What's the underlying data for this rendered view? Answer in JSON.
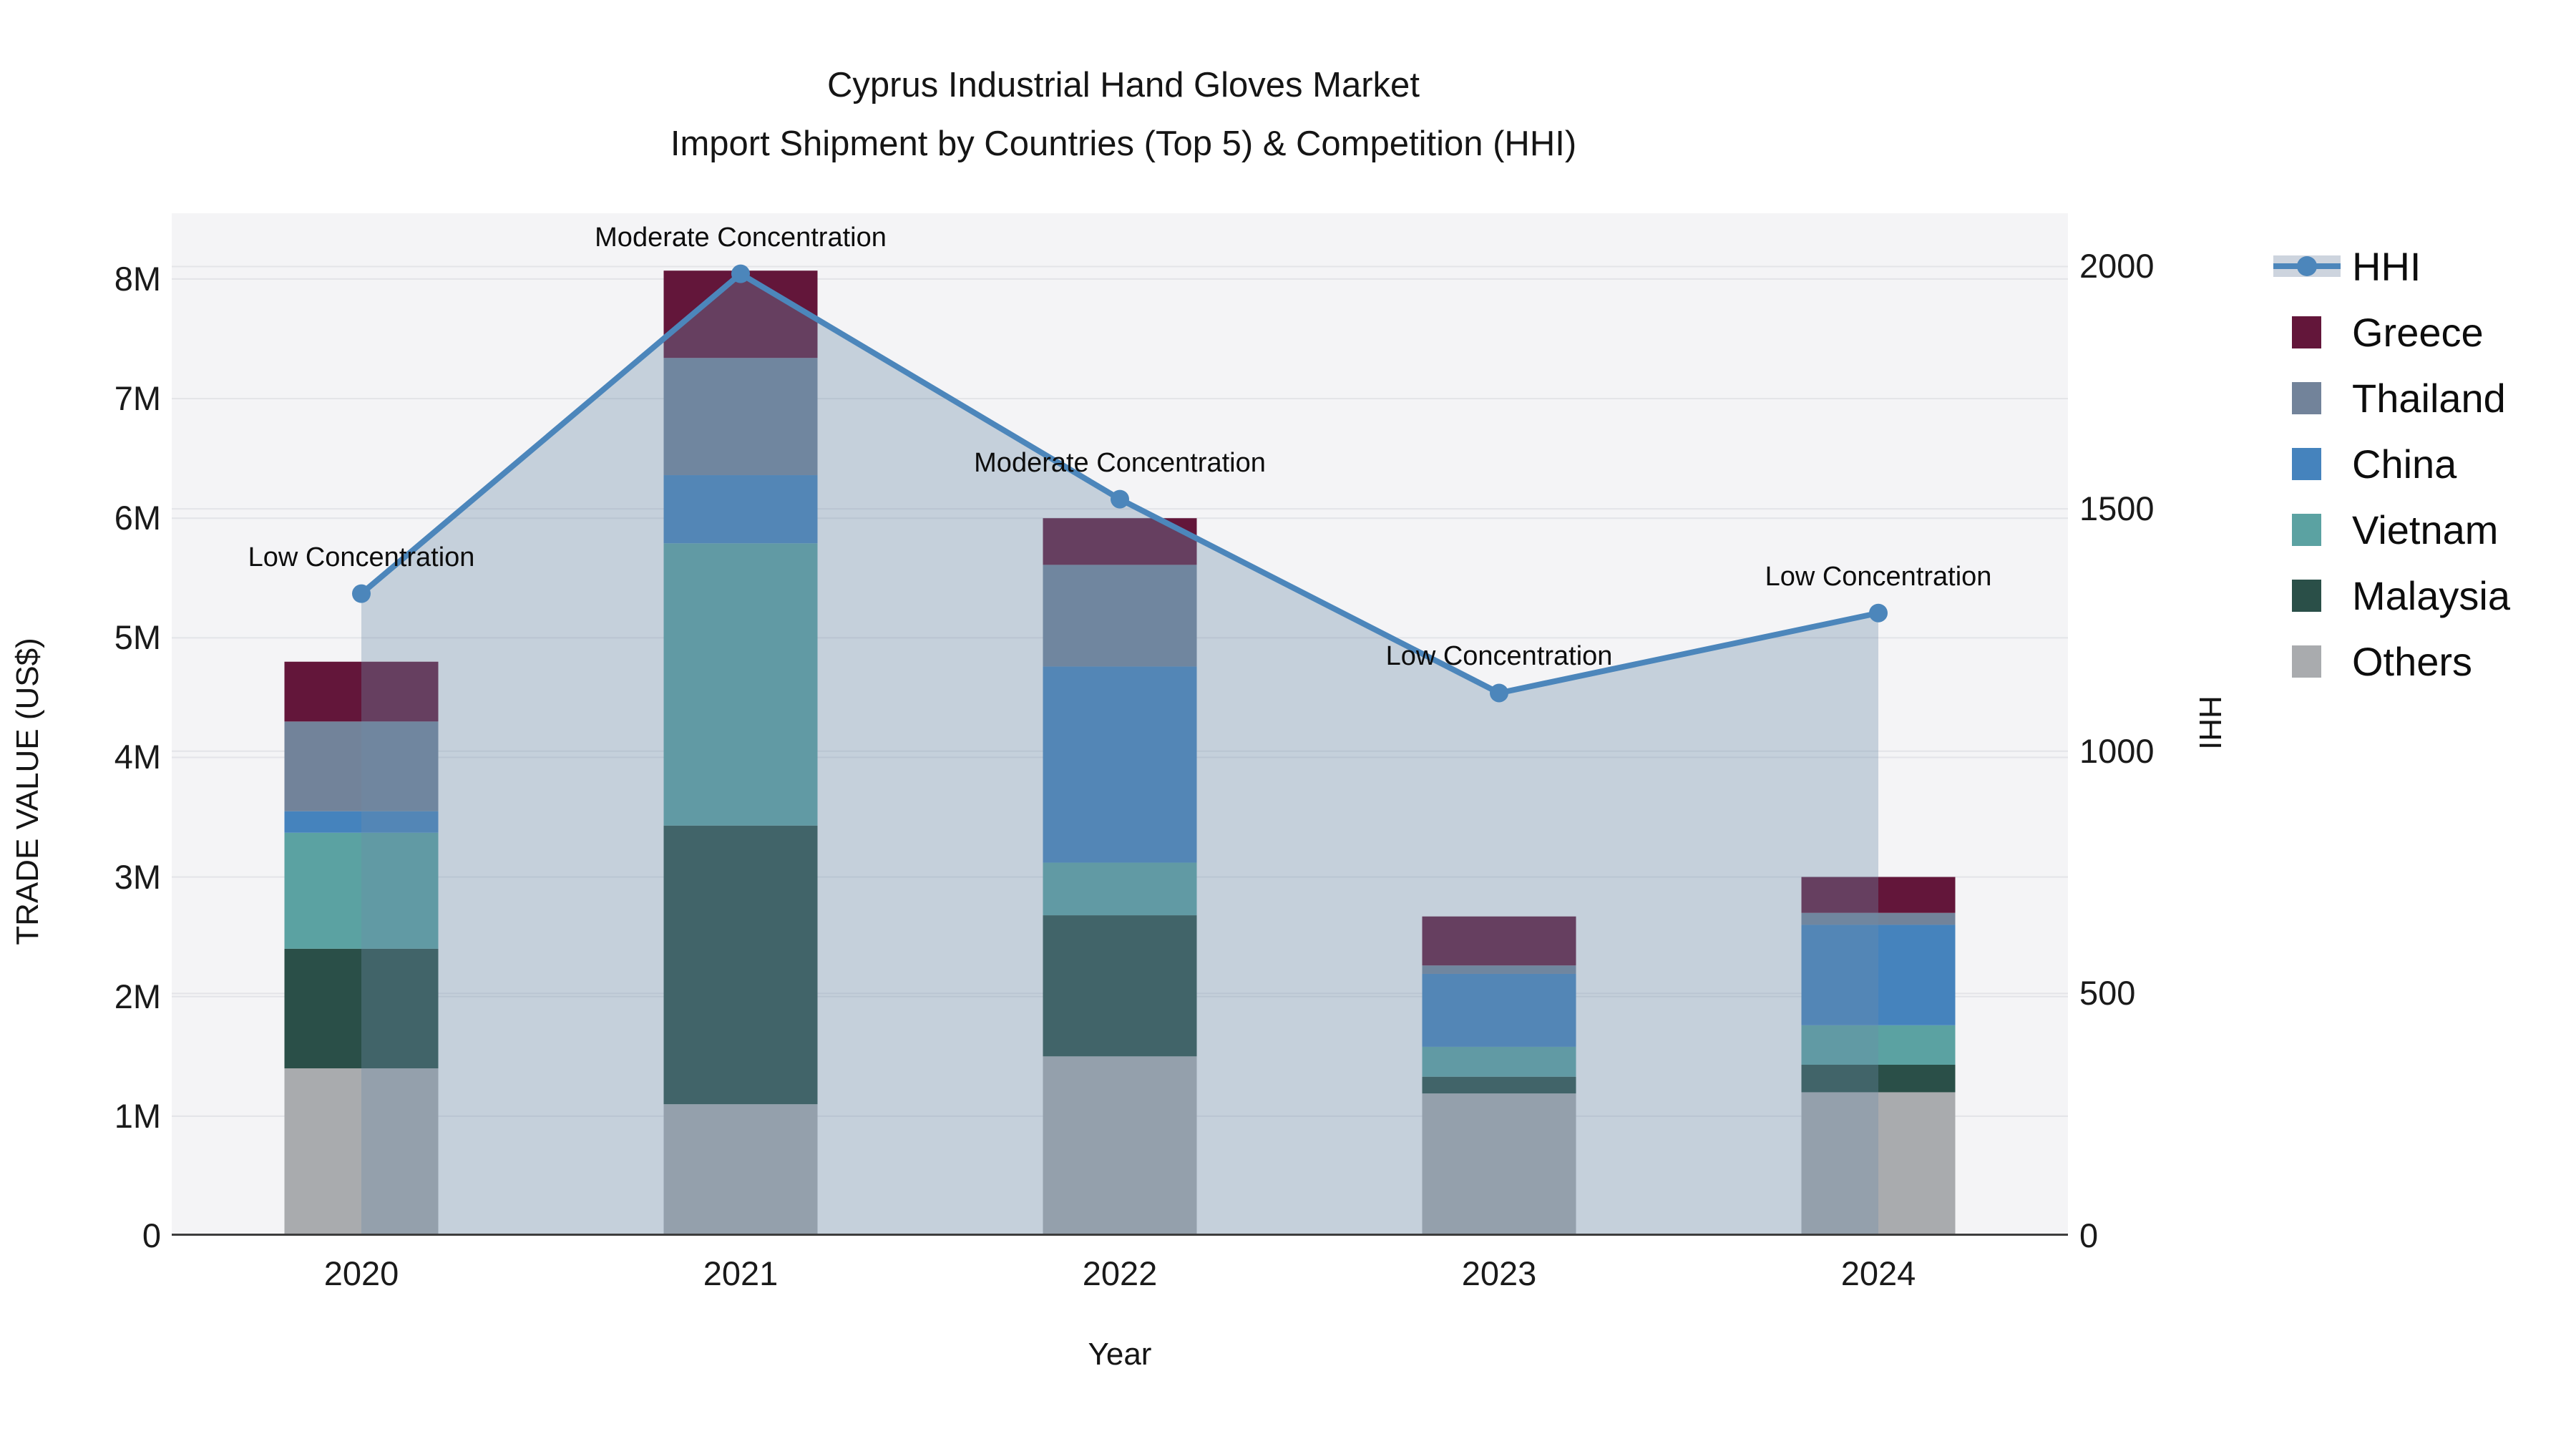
{
  "title": {
    "line1": "Cyprus Industrial Hand Gloves Market",
    "line2": "Import Shipment by Countries (Top 5) & Competition (HHI)"
  },
  "axes": {
    "left_label": "TRADE VALUE (US$)",
    "bottom_label": "Year",
    "right_label": "HHI",
    "left_ticks": [
      {
        "label": "0",
        "value": 0
      },
      {
        "label": "1M",
        "value": 1
      },
      {
        "label": "2M",
        "value": 2
      },
      {
        "label": "3M",
        "value": 3
      },
      {
        "label": "4M",
        "value": 4
      },
      {
        "label": "5M",
        "value": 5
      },
      {
        "label": "6M",
        "value": 6
      },
      {
        "label": "7M",
        "value": 7
      },
      {
        "label": "8M",
        "value": 8
      }
    ],
    "left_max": 8.55,
    "right_ticks": [
      {
        "label": "0",
        "value": 0
      },
      {
        "label": "500",
        "value": 500
      },
      {
        "label": "1000",
        "value": 1000
      },
      {
        "label": "1500",
        "value": 1500
      },
      {
        "label": "2000",
        "value": 2000
      }
    ],
    "right_max": 2110,
    "grid": true
  },
  "chart_data": {
    "type": "bar",
    "subtype": "stacked-bars-with-line-overlay",
    "categories": [
      "2020",
      "2021",
      "2022",
      "2023",
      "2024"
    ],
    "xlabel": "Year",
    "ylabel_left": "TRADE VALUE (US$)",
    "ylabel_right": "HHI",
    "ylim_left_millions": [
      0,
      8.55
    ],
    "ylim_right": [
      0,
      2110
    ],
    "units": "millions USD",
    "series": [
      {
        "name": "Others",
        "color": "#a9abae",
        "values": [
          1.4,
          1.1,
          1.5,
          1.19,
          1.2
        ]
      },
      {
        "name": "Malaysia",
        "color": "#2a4f48",
        "values": [
          1.0,
          2.33,
          1.18,
          0.14,
          0.23
        ]
      },
      {
        "name": "Vietnam",
        "color": "#5ba2a2",
        "values": [
          0.97,
          2.36,
          0.44,
          0.25,
          0.33
        ]
      },
      {
        "name": "China",
        "color": "#4583bd",
        "values": [
          0.18,
          0.57,
          1.64,
          0.61,
          0.84
        ]
      },
      {
        "name": "Thailand",
        "color": "#72839a",
        "values": [
          0.75,
          0.98,
          0.85,
          0.07,
          0.1
        ]
      },
      {
        "name": "Greece",
        "color": "#63163a",
        "values": [
          0.5,
          0.73,
          0.39,
          0.41,
          0.3
        ]
      }
    ],
    "bar_totals_millions": [
      4.8,
      8.07,
      6.0,
      2.67,
      3.0
    ],
    "line_series": {
      "name": "HHI",
      "color": "#4c86bb",
      "area_fill": "rgba(110,140,170,0.35)",
      "values": [
        1325,
        1985,
        1520,
        1120,
        1285
      ]
    },
    "annotations": [
      {
        "year_index": 0,
        "text": "Low Concentration"
      },
      {
        "year_index": 1,
        "text": "Moderate Concentration"
      },
      {
        "year_index": 2,
        "text": "Moderate Concentration"
      },
      {
        "year_index": 3,
        "text": "Low Concentration"
      },
      {
        "year_index": 4,
        "text": "Low Concentration"
      }
    ],
    "legend_position": "right"
  },
  "legend": {
    "items": [
      {
        "label": "HHI",
        "type": "line",
        "color": "#4c86bb"
      },
      {
        "label": "Greece",
        "type": "swatch",
        "color": "#63163a"
      },
      {
        "label": "Thailand",
        "type": "swatch",
        "color": "#72839a"
      },
      {
        "label": "China",
        "type": "swatch",
        "color": "#4583bd"
      },
      {
        "label": "Vietnam",
        "type": "swatch",
        "color": "#5ba2a2"
      },
      {
        "label": "Malaysia",
        "type": "swatch",
        "color": "#2a4f48"
      },
      {
        "label": "Others",
        "type": "swatch",
        "color": "#a9abae"
      }
    ]
  },
  "style": {
    "plot_bg": "#f4f4f6",
    "grid_color": "#e3e4e8",
    "spine_color": "#3d3d3d",
    "text_color": "#111111"
  }
}
